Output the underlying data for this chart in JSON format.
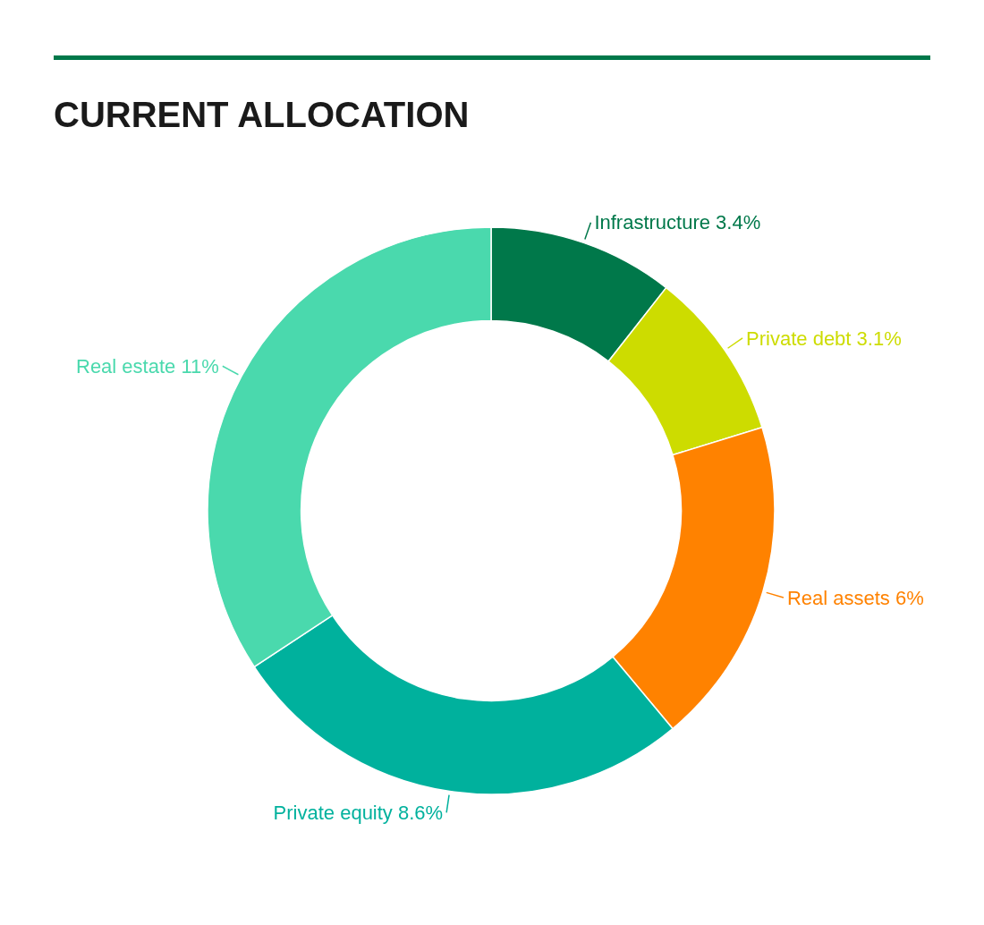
{
  "chart_data": {
    "type": "donut",
    "title": "CURRENT ALLOCATION",
    "categories": [
      "Infrastructure",
      "Private debt",
      "Real assets",
      "Private equity",
      "Real estate"
    ],
    "values": [
      3.4,
      3.1,
      6,
      8.6,
      11
    ],
    "value_labels": [
      "3.4%",
      "3.1%",
      "6%",
      "8.6%",
      "11%"
    ],
    "colors": [
      "#00784a",
      "#cddc00",
      "#ff8200",
      "#00b19d",
      "#4ad9ad"
    ],
    "legend": false
  }
}
